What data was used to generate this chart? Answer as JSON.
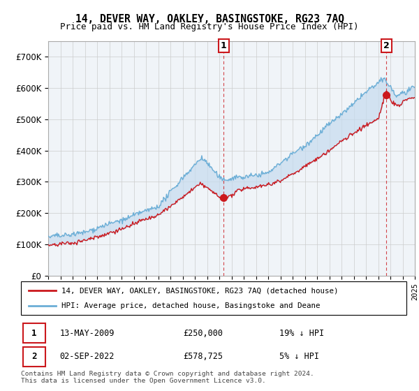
{
  "title": "14, DEVER WAY, OAKLEY, BASINGSTOKE, RG23 7AQ",
  "subtitle": "Price paid vs. HM Land Registry's House Price Index (HPI)",
  "ylim": [
    0,
    750000
  ],
  "yticks": [
    0,
    100000,
    200000,
    300000,
    400000,
    500000,
    600000,
    700000
  ],
  "ytick_labels": [
    "£0",
    "£100K",
    "£200K",
    "£300K",
    "£400K",
    "£500K",
    "£600K",
    "£700K"
  ],
  "hpi_color": "#6baed6",
  "hpi_fill_color": "#c6dbef",
  "price_color": "#cb181d",
  "marker_color": "#cb181d",
  "t1_x": 2009.36,
  "t1_y": 250000,
  "t2_x": 2022.67,
  "t2_y": 578725,
  "legend_line1": "14, DEVER WAY, OAKLEY, BASINGSTOKE, RG23 7AQ (detached house)",
  "legend_line2": "HPI: Average price, detached house, Basingstoke and Deane",
  "table_row1": [
    "1",
    "13-MAY-2009",
    "£250,000",
    "19% ↓ HPI"
  ],
  "table_row2": [
    "2",
    "02-SEP-2022",
    "£578,725",
    "5% ↓ HPI"
  ],
  "footnote": "Contains HM Land Registry data © Crown copyright and database right 2024.\nThis data is licensed under the Open Government Licence v3.0.",
  "xmin": 1995,
  "xmax": 2025
}
